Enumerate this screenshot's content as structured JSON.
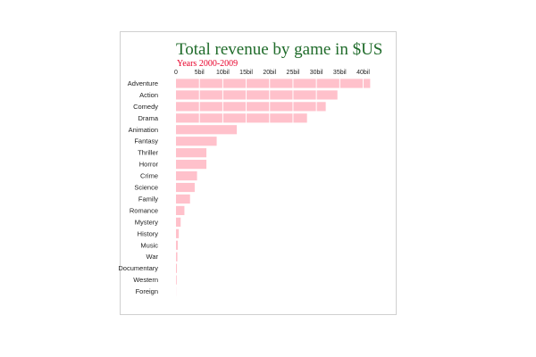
{
  "colors": {
    "title": "#1f6b2a",
    "subtitle": "#e8002a",
    "bar": "#ffc1cb",
    "grid": "#ffffff"
  },
  "chart_data": {
    "type": "bar",
    "orientation": "horizontal",
    "title": "Total revenue by game in $US",
    "subtitle": "Years 2000-2009",
    "xlim": [
      0,
      42
    ],
    "tick_values": [
      0,
      5,
      10,
      15,
      20,
      25,
      30,
      35,
      40
    ],
    "tick_labels": [
      "0",
      "5bil",
      "10bil",
      "15bil",
      "20bil",
      "25bil",
      "30bil",
      "35bil",
      "40bil"
    ],
    "categories": [
      "Adventure",
      "Action",
      "Comedy",
      "Drama",
      "Animation",
      "Fantasy",
      "Thriller",
      "Horror",
      "Crime",
      "Science",
      "Family",
      "Romance",
      "Mystery",
      "History",
      "Music",
      "War",
      "Documentary",
      "Western",
      "Foreign"
    ],
    "values": [
      41.5,
      34.5,
      32.0,
      28.0,
      13.0,
      8.7,
      6.5,
      6.5,
      4.5,
      4.0,
      3.0,
      1.8,
      1.0,
      0.6,
      0.4,
      0.3,
      0.2,
      0.15,
      0.02
    ]
  }
}
